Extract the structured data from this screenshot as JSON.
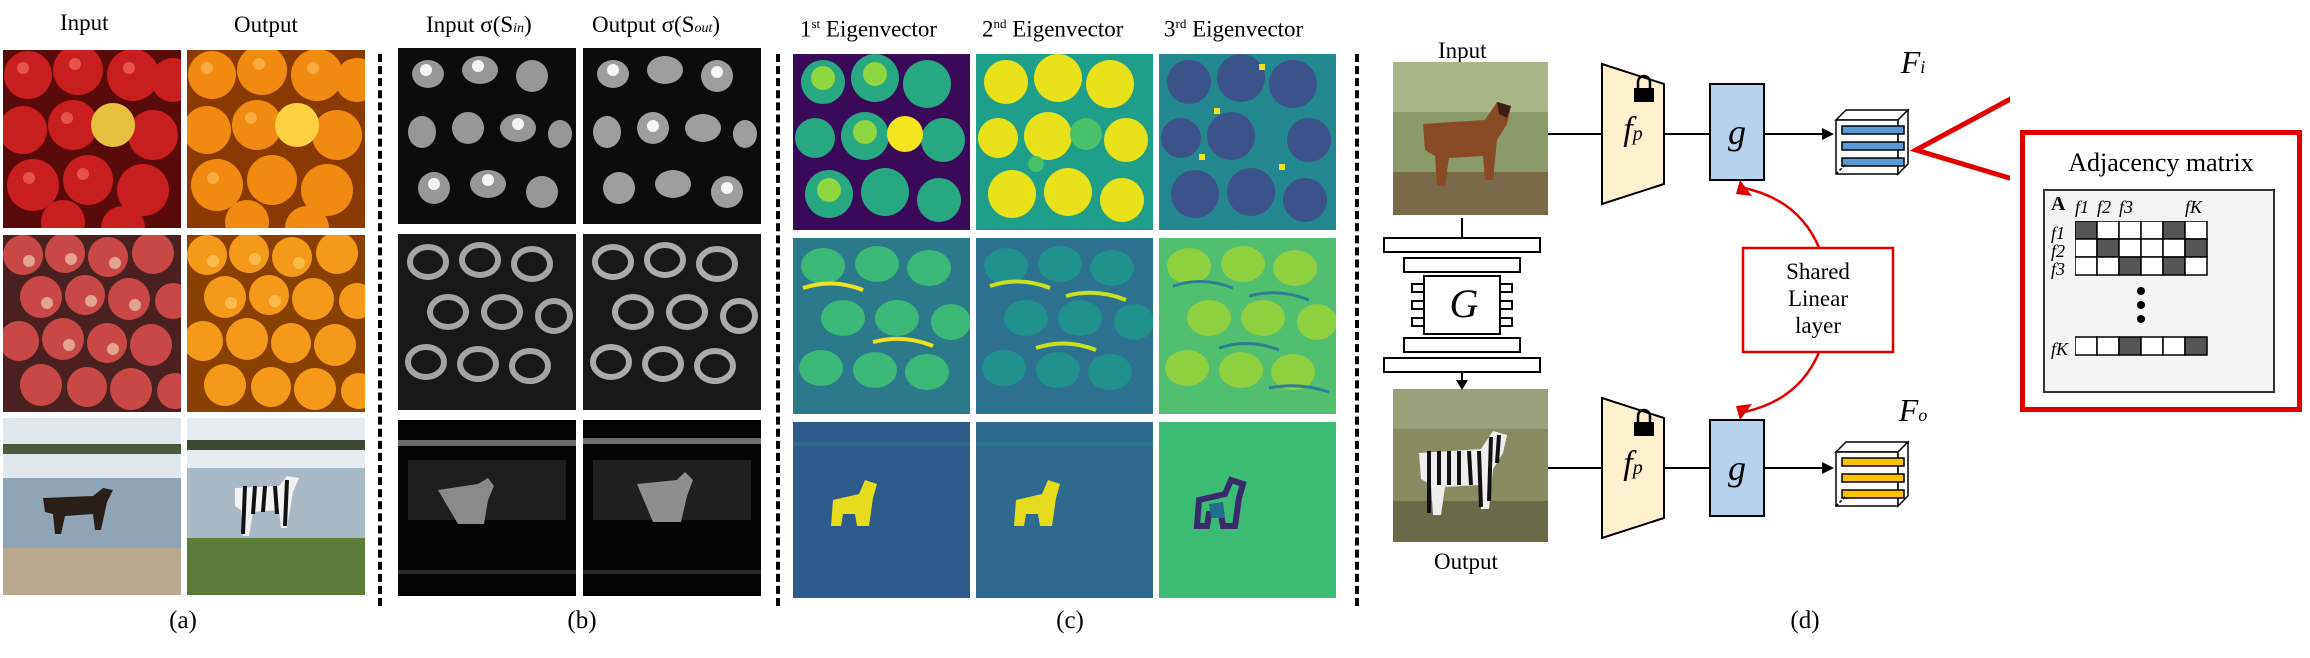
{
  "panel_a": {
    "input_label": "Input",
    "output_label": "Output",
    "caption": "(a)"
  },
  "panel_b": {
    "input_label": "Input σ(S",
    "input_sub": "in",
    "output_label": "Output σ(S",
    "output_sub": "out",
    "close_paren": ")",
    "caption": "(b)"
  },
  "panel_c": {
    "eig1_num": "1",
    "eig1_sup": "st",
    "eig2_num": "2",
    "eig2_sup": "nd",
    "eig3_num": "3",
    "eig3_sup": "rd",
    "eig_word": "Eigenvector",
    "caption": "(c)"
  },
  "panel_d": {
    "input_label": "Input",
    "output_label": "Output",
    "generator": "G",
    "fp_f": "f",
    "fp_sub": "p",
    "g_label": "g",
    "fi_f": "F",
    "fi_sub": "i",
    "fo_f": "F",
    "fo_sub": "o",
    "shared_line1": "Shared",
    "shared_line2": "Linear",
    "shared_line3": "layer",
    "adj_title": "Adjacency matrix",
    "adj_A": "A",
    "adj_cols": [
      "f1",
      "f2",
      "f3",
      "fK"
    ],
    "adj_rows": [
      "f1",
      "f2",
      "f3",
      "fK"
    ],
    "caption": "(d)",
    "colors": {
      "encoder_fill": "#fdf0cf",
      "g_fill": "#b8d2ee",
      "fi_bars": "#5b9bd5",
      "fo_bars": "#ffc000",
      "accent_red": "#e00000"
    }
  }
}
